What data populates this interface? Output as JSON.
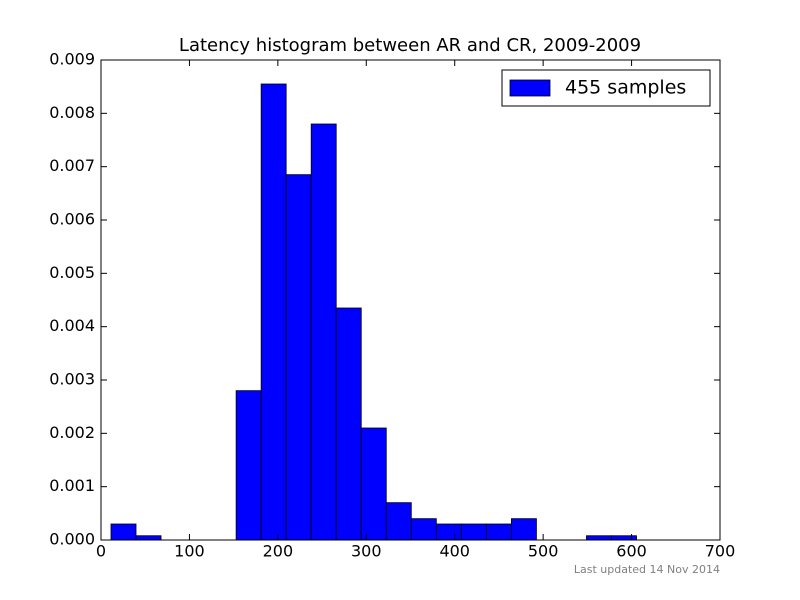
{
  "chart_data": {
    "type": "histogram",
    "title": "Latency histogram between AR and CR, 2009-2009",
    "footer": "Last updated 14 Nov 2014",
    "bins": [
      11.3,
      39.6,
      67.9,
      96.2,
      124.5,
      152.8,
      181.1,
      209.4,
      237.7,
      266.0,
      294.3,
      322.6,
      350.9,
      379.2,
      407.5,
      435.8,
      464.1,
      492.4,
      520.7,
      549.0,
      577.3,
      605.6
    ],
    "series": [
      {
        "name": "455 samples",
        "color": "#0000ff",
        "values": [
          0.0003,
          8e-05,
          0,
          0,
          0,
          0.0028,
          0.00855,
          0.00685,
          0.0078,
          0.00435,
          0.0021,
          0.0007,
          0.0004,
          0.0003,
          0.0003,
          0.0003,
          0.0004,
          0,
          0,
          8e-05,
          8e-05
        ]
      }
    ],
    "xlim": [
      0,
      700
    ],
    "xticks": [
      0,
      100,
      200,
      300,
      400,
      500,
      600,
      700
    ],
    "ylim": [
      0,
      0.009
    ],
    "yticks": [
      {
        "value": 0,
        "label": "0.000"
      },
      {
        "value": 0.001,
        "label": "0.001"
      },
      {
        "value": 0.002,
        "label": "0.002"
      },
      {
        "value": 0.003,
        "label": "0.003"
      },
      {
        "value": 0.004,
        "label": "0.004"
      },
      {
        "value": 0.005,
        "label": "0.005"
      },
      {
        "value": 0.006,
        "label": "0.006"
      },
      {
        "value": 0.007,
        "label": "0.007"
      },
      {
        "value": 0.008,
        "label": "0.008"
      },
      {
        "value": 0.009,
        "label": "0.009"
      }
    ],
    "legend": "upper right"
  }
}
